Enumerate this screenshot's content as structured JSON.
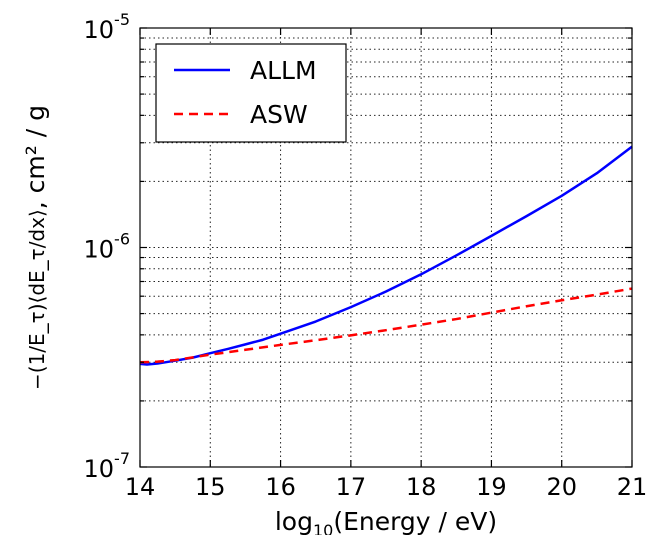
{
  "chart_data": {
    "type": "line",
    "xlabel_text": "log",
    "xlabel_sub": "10",
    "xlabel_rest": "(Energy / eV)",
    "ylabel_tex": "−(1/E_τ)⟨dE_τ/dx⟩",
    "ylabel_units": ", cm² / g",
    "x_scale": "linear",
    "y_scale": "log",
    "xlim": [
      14,
      21
    ],
    "ylim": [
      1e-07,
      1e-05
    ],
    "xticks": [
      "14",
      "15",
      "16",
      "17",
      "18",
      "19",
      "20",
      "21"
    ],
    "yticks": [
      {
        "base": "10",
        "exp": "-7",
        "value": 1e-07
      },
      {
        "base": "10",
        "exp": "-6",
        "value": 1e-06
      },
      {
        "base": "10",
        "exp": "-5",
        "value": 1e-05
      }
    ],
    "grid": true,
    "legend_position": "top-left",
    "series": [
      {
        "name": "ALLM",
        "style": "solid",
        "color": "#0000ff",
        "x": [
          14.0,
          14.1,
          14.25,
          14.5,
          14.75,
          15.0,
          15.25,
          15.5,
          15.75,
          16.0,
          16.5,
          17.0,
          17.5,
          18.0,
          18.5,
          19.0,
          19.5,
          20.0,
          20.5,
          21.0
        ],
        "y": [
          2.95e-07,
          2.93e-07,
          2.96e-07,
          3.05e-07,
          3.15e-07,
          3.3e-07,
          3.45e-07,
          3.62e-07,
          3.8e-07,
          4.05e-07,
          4.6e-07,
          5.35e-07,
          6.3e-07,
          7.55e-07,
          9.2e-07,
          1.13e-06,
          1.39e-06,
          1.72e-06,
          2.18e-06,
          2.88e-06
        ]
      },
      {
        "name": "ASW",
        "style": "dashed",
        "color": "#ff0000",
        "x": [
          14.0,
          14.25,
          14.5,
          15.0,
          15.5,
          16.0,
          16.5,
          17.0,
          17.5,
          18.0,
          18.5,
          19.0,
          19.5,
          20.0,
          20.5,
          21.0
        ],
        "y": [
          3e-07,
          3.02e-07,
          3.07e-07,
          3.25e-07,
          3.42e-07,
          3.6e-07,
          3.78e-07,
          3.98e-07,
          4.2e-07,
          4.45e-07,
          4.72e-07,
          5.05e-07,
          5.4e-07,
          5.75e-07,
          6.1e-07,
          6.5e-07
        ]
      }
    ]
  }
}
